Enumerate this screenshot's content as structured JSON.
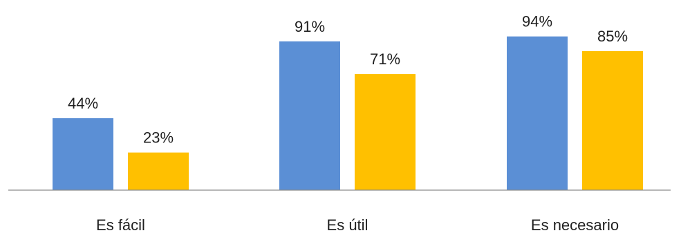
{
  "chart_data": {
    "type": "bar",
    "categories": [
      "Es fácil",
      "Es útil",
      "Es necesario"
    ],
    "series": [
      {
        "values": [
          44,
          91,
          94
        ],
        "color": "#5B8FD5"
      },
      {
        "values": [
          23,
          71,
          85
        ],
        "color": "#FFC000"
      }
    ],
    "value_format": "percent",
    "ylim": [
      0,
      100
    ],
    "grid": false,
    "legend": "none",
    "xlabel": "",
    "ylabel": "",
    "title": ""
  }
}
